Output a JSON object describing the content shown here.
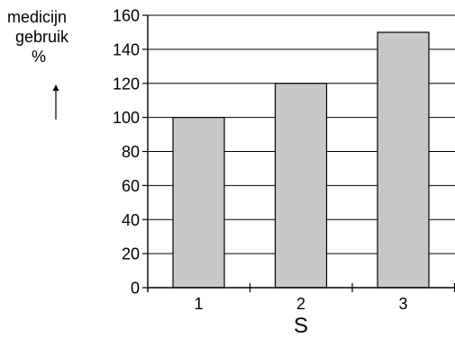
{
  "chart_data": {
    "type": "bar",
    "categories": [
      "1",
      "2",
      "3"
    ],
    "values": [
      100,
      120,
      150
    ],
    "title": "",
    "xlabel": "S",
    "ylabel_lines": [
      "medicijn",
      "gebruik",
      "%"
    ],
    "ylim": [
      0,
      160
    ],
    "yticks": [
      0,
      20,
      40,
      60,
      80,
      100,
      120,
      140,
      160
    ],
    "grid": true,
    "bar_color": "#c8c8c8",
    "axis_color": "#000000"
  }
}
